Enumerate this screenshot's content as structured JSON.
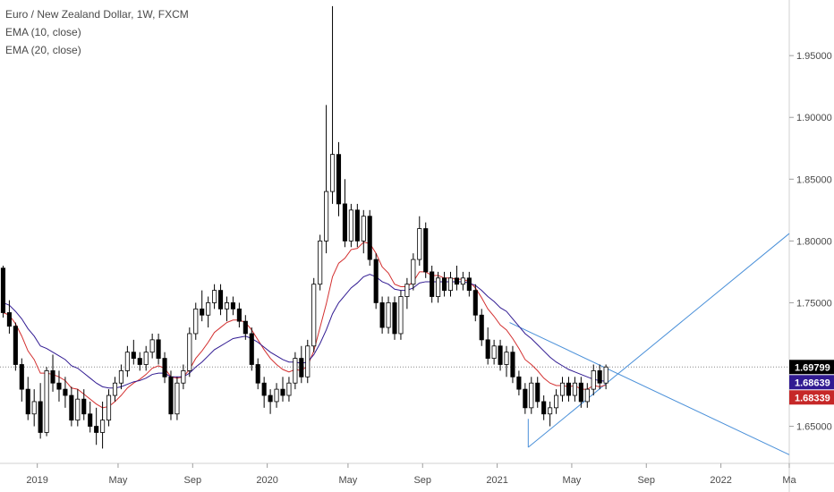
{
  "legend": {
    "symbol_line": "Euro / New Zealand Dollar, 1W, FXCM",
    "ema10": "EMA (10, close)",
    "ema20": "EMA (20, close)"
  },
  "chart_data": {
    "type": "candlestick",
    "symbol": "Euro / New Zealand Dollar",
    "interval": "1W",
    "source": "FXCM",
    "ylim": [
      1.62,
      1.995
    ],
    "y_ticks": [
      "1.65000",
      "1.70000",
      "1.75000",
      "1.80000",
      "1.85000",
      "1.90000",
      "1.95000"
    ],
    "y_tick_values": [
      1.65,
      1.7,
      1.75,
      1.8,
      1.85,
      1.9,
      1.95
    ],
    "x_range_weeks": [
      0,
      127
    ],
    "x_ticks": [
      {
        "label": "2019",
        "week": 6
      },
      {
        "label": "May",
        "week": 19
      },
      {
        "label": "Sep",
        "week": 31
      },
      {
        "label": "2020",
        "week": 43
      },
      {
        "label": "May",
        "week": 56
      },
      {
        "label": "Sep",
        "week": 68
      },
      {
        "label": "2021",
        "week": 80
      },
      {
        "label": "May",
        "week": 92
      },
      {
        "label": "Sep",
        "week": 104
      },
      {
        "label": "2022",
        "week": 116
      },
      {
        "label": "Ma",
        "week": 127
      }
    ],
    "candles": [
      [
        1.778,
        1.78,
        1.738,
        1.742
      ],
      [
        1.742,
        1.752,
        1.725,
        1.731
      ],
      [
        1.731,
        1.734,
        1.695,
        1.7
      ],
      [
        1.7,
        1.705,
        1.67,
        1.68
      ],
      [
        1.68,
        1.69,
        1.655,
        1.66
      ],
      [
        1.66,
        1.68,
        1.65,
        1.67
      ],
      [
        1.67,
        1.685,
        1.64,
        1.645
      ],
      [
        1.645,
        1.698,
        1.642,
        1.695
      ],
      [
        1.695,
        1.708,
        1.678,
        1.685
      ],
      [
        1.685,
        1.695,
        1.67,
        1.68
      ],
      [
        1.68,
        1.69,
        1.665,
        1.675
      ],
      [
        1.675,
        1.682,
        1.65,
        1.655
      ],
      [
        1.655,
        1.68,
        1.65,
        1.672
      ],
      [
        1.672,
        1.68,
        1.655,
        1.66
      ],
      [
        1.66,
        1.67,
        1.645,
        1.65
      ],
      [
        1.65,
        1.665,
        1.635,
        1.645
      ],
      [
        1.645,
        1.67,
        1.632,
        1.655
      ],
      [
        1.655,
        1.68,
        1.65,
        1.675
      ],
      [
        1.675,
        1.69,
        1.67,
        1.685
      ],
      [
        1.685,
        1.7,
        1.68,
        1.695
      ],
      [
        1.695,
        1.715,
        1.69,
        1.71
      ],
      [
        1.71,
        1.72,
        1.7,
        1.705
      ],
      [
        1.705,
        1.71,
        1.695,
        1.7
      ],
      [
        1.7,
        1.715,
        1.695,
        1.71
      ],
      [
        1.71,
        1.725,
        1.705,
        1.72
      ],
      [
        1.72,
        1.725,
        1.7,
        1.705
      ],
      [
        1.705,
        1.71,
        1.685,
        1.69
      ],
      [
        1.69,
        1.695,
        1.655,
        1.66
      ],
      [
        1.66,
        1.69,
        1.655,
        1.685
      ],
      [
        1.685,
        1.7,
        1.68,
        1.695
      ],
      [
        1.695,
        1.73,
        1.69,
        1.725
      ],
      [
        1.725,
        1.75,
        1.72,
        1.745
      ],
      [
        1.745,
        1.76,
        1.735,
        1.74
      ],
      [
        1.74,
        1.755,
        1.73,
        1.75
      ],
      [
        1.75,
        1.765,
        1.745,
        1.76
      ],
      [
        1.76,
        1.765,
        1.74,
        1.745
      ],
      [
        1.745,
        1.755,
        1.735,
        1.75
      ],
      [
        1.75,
        1.755,
        1.74,
        1.745
      ],
      [
        1.745,
        1.75,
        1.73,
        1.735
      ],
      [
        1.735,
        1.74,
        1.72,
        1.725
      ],
      [
        1.725,
        1.73,
        1.695,
        1.7
      ],
      [
        1.7,
        1.705,
        1.68,
        1.685
      ],
      [
        1.685,
        1.69,
        1.665,
        1.675
      ],
      [
        1.675,
        1.68,
        1.66,
        1.67
      ],
      [
        1.67,
        1.685,
        1.665,
        1.68
      ],
      [
        1.68,
        1.69,
        1.67,
        1.675
      ],
      [
        1.675,
        1.69,
        1.67,
        1.685
      ],
      [
        1.685,
        1.71,
        1.68,
        1.705
      ],
      [
        1.705,
        1.715,
        1.685,
        1.69
      ],
      [
        1.69,
        1.72,
        1.685,
        1.715
      ],
      [
        1.715,
        1.77,
        1.71,
        1.765
      ],
      [
        1.765,
        1.805,
        1.76,
        1.8
      ],
      [
        1.8,
        1.91,
        1.79,
        1.84
      ],
      [
        1.84,
        1.99,
        1.83,
        1.87
      ],
      [
        1.87,
        1.88,
        1.82,
        1.83
      ],
      [
        1.83,
        1.85,
        1.795,
        1.8
      ],
      [
        1.8,
        1.83,
        1.795,
        1.825
      ],
      [
        1.825,
        1.83,
        1.795,
        1.8
      ],
      [
        1.8,
        1.825,
        1.79,
        1.82
      ],
      [
        1.82,
        1.825,
        1.78,
        1.785
      ],
      [
        1.785,
        1.79,
        1.745,
        1.75
      ],
      [
        1.75,
        1.755,
        1.725,
        1.73
      ],
      [
        1.73,
        1.755,
        1.725,
        1.75
      ],
      [
        1.75,
        1.755,
        1.72,
        1.725
      ],
      [
        1.725,
        1.76,
        1.72,
        1.755
      ],
      [
        1.755,
        1.77,
        1.745,
        1.765
      ],
      [
        1.765,
        1.79,
        1.76,
        1.785
      ],
      [
        1.785,
        1.82,
        1.78,
        1.81
      ],
      [
        1.81,
        1.815,
        1.77,
        1.775
      ],
      [
        1.775,
        1.78,
        1.75,
        1.755
      ],
      [
        1.755,
        1.775,
        1.75,
        1.77
      ],
      [
        1.77,
        1.775,
        1.755,
        1.76
      ],
      [
        1.76,
        1.775,
        1.755,
        1.77
      ],
      [
        1.77,
        1.78,
        1.76,
        1.765
      ],
      [
        1.765,
        1.775,
        1.76,
        1.77
      ],
      [
        1.77,
        1.775,
        1.755,
        1.76
      ],
      [
        1.76,
        1.765,
        1.735,
        1.74
      ],
      [
        1.74,
        1.745,
        1.715,
        1.72
      ],
      [
        1.72,
        1.73,
        1.7,
        1.705
      ],
      [
        1.705,
        1.72,
        1.7,
        1.715
      ],
      [
        1.715,
        1.72,
        1.695,
        1.7
      ],
      [
        1.7,
        1.715,
        1.69,
        1.71
      ],
      [
        1.71,
        1.715,
        1.685,
        1.69
      ],
      [
        1.69,
        1.695,
        1.675,
        1.68
      ],
      [
        1.68,
        1.685,
        1.66,
        1.665
      ],
      [
        1.665,
        1.69,
        1.66,
        1.685
      ],
      [
        1.685,
        1.69,
        1.665,
        1.67
      ],
      [
        1.67,
        1.675,
        1.655,
        1.66
      ],
      [
        1.66,
        1.67,
        1.65,
        1.665
      ],
      [
        1.665,
        1.68,
        1.66,
        1.675
      ],
      [
        1.675,
        1.69,
        1.67,
        1.685
      ],
      [
        1.685,
        1.69,
        1.67,
        1.675
      ],
      [
        1.675,
        1.69,
        1.67,
        1.685
      ],
      [
        1.685,
        1.69,
        1.665,
        1.67
      ],
      [
        1.67,
        1.685,
        1.665,
        1.68
      ],
      [
        1.68,
        1.7,
        1.675,
        1.695
      ],
      [
        1.695,
        1.7,
        1.68,
        1.685
      ],
      [
        1.685,
        1.7,
        1.68,
        1.698
      ]
    ],
    "series": [
      {
        "name": "EMA (10, close)",
        "color": "#d32f2f",
        "values": [
          1.742,
          1.74,
          1.733,
          1.723,
          1.711,
          1.704,
          1.693,
          1.693,
          1.692,
          1.69,
          1.687,
          1.681,
          1.68,
          1.676,
          1.672,
          1.668,
          1.665,
          1.666,
          1.67,
          1.675,
          1.681,
          1.685,
          1.688,
          1.692,
          1.697,
          1.699,
          1.697,
          1.69,
          1.689,
          1.69,
          1.696,
          1.705,
          1.711,
          1.718,
          1.726,
          1.73,
          1.734,
          1.736,
          1.736,
          1.734,
          1.728,
          1.72,
          1.712,
          1.705,
          1.7,
          1.696,
          1.694,
          1.696,
          1.695,
          1.699,
          1.711,
          1.73,
          1.749,
          1.771,
          1.782,
          1.786,
          1.793,
          1.794,
          1.799,
          1.798,
          1.79,
          1.779,
          1.774,
          1.765,
          1.763,
          1.763,
          1.767,
          1.775,
          1.775,
          1.772,
          1.772,
          1.77,
          1.77,
          1.769,
          1.769,
          1.767,
          1.762,
          1.754,
          1.745,
          1.739,
          1.732,
          1.728,
          1.721,
          1.713,
          1.704,
          1.7,
          1.695,
          1.689,
          1.685,
          1.683,
          1.683,
          1.682,
          1.683,
          1.68,
          1.68,
          1.683,
          1.682,
          1.6834
        ]
      },
      {
        "name": "EMA (20, close)",
        "color": "#311b92",
        "values": [
          1.75,
          1.748,
          1.743,
          1.737,
          1.729,
          1.723,
          1.715,
          1.713,
          1.71,
          1.707,
          1.704,
          1.699,
          1.697,
          1.693,
          1.689,
          1.685,
          1.682,
          1.681,
          1.681,
          1.682,
          1.684,
          1.686,
          1.687,
          1.689,
          1.692,
          1.693,
          1.693,
          1.69,
          1.69,
          1.69,
          1.693,
          1.698,
          1.702,
          1.707,
          1.712,
          1.715,
          1.718,
          1.721,
          1.722,
          1.723,
          1.721,
          1.718,
          1.714,
          1.71,
          1.707,
          1.704,
          1.702,
          1.702,
          1.701,
          1.702,
          1.708,
          1.717,
          1.728,
          1.741,
          1.75,
          1.756,
          1.762,
          1.766,
          1.771,
          1.773,
          1.771,
          1.767,
          1.765,
          1.761,
          1.76,
          1.76,
          1.762,
          1.766,
          1.767,
          1.767,
          1.767,
          1.767,
          1.767,
          1.767,
          1.767,
          1.766,
          1.764,
          1.76,
          1.755,
          1.751,
          1.746,
          1.743,
          1.737,
          1.731,
          1.725,
          1.721,
          1.716,
          1.711,
          1.706,
          1.702,
          1.699,
          1.696,
          1.694,
          1.692,
          1.69,
          1.688,
          1.687,
          1.6864
        ]
      }
    ],
    "current_price": 1.69799,
    "price_labels": [
      {
        "text": "1.69799",
        "value": 1.69799,
        "bg": "#000000",
        "fg": "#ffffff"
      },
      {
        "text": "1.68639",
        "value": 1.68639,
        "bg": "#311b92",
        "fg": "#ffffff"
      },
      {
        "text": "1.68339",
        "value": 1.68339,
        "bg": "#c62828",
        "fg": "#ffffff"
      }
    ],
    "trendlines": [
      {
        "name": "upper-trendline",
        "from": {
          "week": 82,
          "price": 1.734
        },
        "to": {
          "week": 127,
          "price": 1.627
        }
      },
      {
        "name": "lower-trendline",
        "from": {
          "week": 85,
          "price": 1.633
        },
        "to": {
          "week": 127,
          "price": 1.806
        }
      },
      {
        "name": "triangle-base",
        "from": {
          "week": 85,
          "price": 1.633
        },
        "to": {
          "week": 85,
          "price": 1.656
        }
      }
    ],
    "colors": {
      "up": "#ffffff",
      "down": "#000000",
      "wick": "#000000",
      "trendline": "#4a90d9",
      "axis_text": "#4a4a4a",
      "grid": "#e0e0e0"
    }
  }
}
